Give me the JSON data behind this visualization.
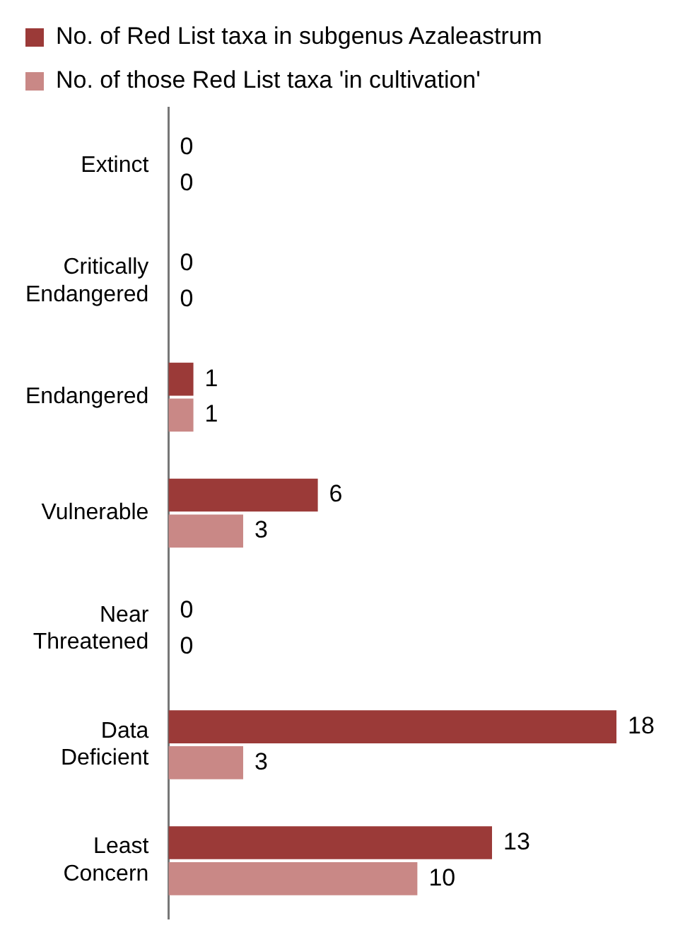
{
  "chart_data": {
    "type": "bar",
    "orientation": "horizontal",
    "categories": [
      "Extinct",
      "Critically Endangered",
      "Endangered",
      "Vulnerable",
      "Near Threatened",
      "Data Deficient",
      "Least Concern"
    ],
    "series": [
      {
        "name": "No. of Red List taxa in subgenus Azaleastrum",
        "color": "#9b3a38",
        "values": [
          0,
          0,
          1,
          6,
          0,
          18,
          13
        ]
      },
      {
        "name": "No. of those Red List taxa 'in cultivation'",
        "color": "#c98886",
        "values": [
          0,
          0,
          1,
          3,
          0,
          3,
          10
        ]
      }
    ],
    "xlim": [
      0,
      18
    ],
    "data_labels": true,
    "legend": "top left",
    "grid": false
  }
}
